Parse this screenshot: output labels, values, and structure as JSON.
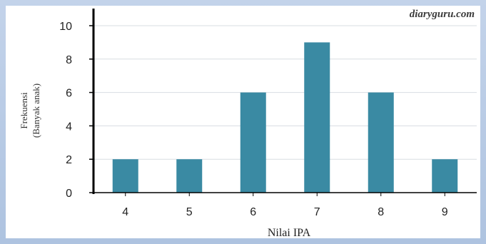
{
  "watermark": "diaryguru.com",
  "chart_data": {
    "type": "bar",
    "categories": [
      "4",
      "5",
      "6",
      "7",
      "8",
      "9"
    ],
    "values": [
      2,
      2,
      6,
      9,
      6,
      2
    ],
    "xlabel": "Nilai IPA",
    "ylabel_lines": [
      "Frekuensi",
      "(Banyak anak)"
    ],
    "ylim": [
      0,
      10
    ],
    "yticks": [
      0,
      2,
      4,
      6,
      8,
      10
    ],
    "grid": true,
    "bar_color": "#3a8aa3",
    "grid_color": "#d8dde2"
  }
}
